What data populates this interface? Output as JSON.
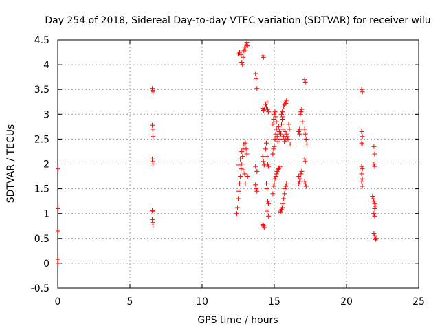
{
  "chart_data": {
    "type": "scatter",
    "title": "Day 254 of 2018, Sidereal Day-to-day VTEC variation (SDTVAR) for receiver wilu",
    "xlabel": "GPS time / hours",
    "ylabel": "SDTVAR / TECUs",
    "xlim": [
      0,
      25
    ],
    "ylim": [
      -0.5,
      4.5
    ],
    "xticks": [
      0,
      5,
      10,
      15,
      20,
      25
    ],
    "xtick_labels": [
      "0",
      "5",
      "10",
      "15",
      "20",
      "25"
    ],
    "yticks": [
      -0.5,
      0,
      0.5,
      1,
      1.5,
      2,
      2.5,
      3,
      3.5,
      4,
      4.5
    ],
    "ytick_labels": [
      "-0.5",
      "0",
      "0.5",
      "1",
      "1.5",
      "2",
      "2.5",
      "3",
      "3.5",
      "4",
      "4.5"
    ],
    "grid": true,
    "marker": "+",
    "color": "#ff0000",
    "series": [
      {
        "name": "SDTVAR",
        "points": [
          [
            0.02,
            1.9
          ],
          [
            0.02,
            1.1
          ],
          [
            0.02,
            0.65
          ],
          [
            0.02,
            0.08
          ],
          [
            0.02,
            0.0
          ],
          [
            6.55,
            3.52
          ],
          [
            6.58,
            3.48
          ],
          [
            6.6,
            3.45
          ],
          [
            6.55,
            2.78
          ],
          [
            6.58,
            2.7
          ],
          [
            6.6,
            2.55
          ],
          [
            6.55,
            2.1
          ],
          [
            6.58,
            2.05
          ],
          [
            6.6,
            2.0
          ],
          [
            6.55,
            1.06
          ],
          [
            6.58,
            1.04
          ],
          [
            6.55,
            0.88
          ],
          [
            6.58,
            0.82
          ],
          [
            6.6,
            0.77
          ],
          [
            12.4,
            1.0
          ],
          [
            12.45,
            1.12
          ],
          [
            12.5,
            1.3
          ],
          [
            12.55,
            1.45
          ],
          [
            12.6,
            1.6
          ],
          [
            12.65,
            1.75
          ],
          [
            12.7,
            1.9
          ],
          [
            12.75,
            2.0
          ],
          [
            12.8,
            2.15
          ],
          [
            12.85,
            2.3
          ],
          [
            12.9,
            2.4
          ],
          [
            13.0,
            2.42
          ],
          [
            12.55,
            1.98
          ],
          [
            12.65,
            2.1
          ],
          [
            12.75,
            2.25
          ],
          [
            12.85,
            1.88
          ],
          [
            12.95,
            1.8
          ],
          [
            12.5,
            4.22
          ],
          [
            12.6,
            4.25
          ],
          [
            12.7,
            4.2
          ],
          [
            12.75,
            4.05
          ],
          [
            12.8,
            4.0
          ],
          [
            12.85,
            4.15
          ],
          [
            12.9,
            4.28
          ],
          [
            12.95,
            4.35
          ],
          [
            13.0,
            4.3
          ],
          [
            13.05,
            4.4
          ],
          [
            13.1,
            4.45
          ],
          [
            13.15,
            4.38
          ],
          [
            13.05,
            2.3
          ],
          [
            13.1,
            2.2
          ],
          [
            13.15,
            1.75
          ],
          [
            13.0,
            1.6
          ],
          [
            13.7,
            3.82
          ],
          [
            13.75,
            3.72
          ],
          [
            13.8,
            3.52
          ],
          [
            13.7,
            1.95
          ],
          [
            13.8,
            1.85
          ],
          [
            13.7,
            1.58
          ],
          [
            13.75,
            1.5
          ],
          [
            13.8,
            1.45
          ],
          [
            14.2,
            4.18
          ],
          [
            14.25,
            4.15
          ],
          [
            14.2,
            3.12
          ],
          [
            14.25,
            3.08
          ],
          [
            14.3,
            3.1
          ],
          [
            14.2,
            2.15
          ],
          [
            14.25,
            2.05
          ],
          [
            14.3,
            1.98
          ],
          [
            14.2,
            0.78
          ],
          [
            14.25,
            0.75
          ],
          [
            14.3,
            0.72
          ],
          [
            14.4,
            3.2
          ],
          [
            14.45,
            3.15
          ],
          [
            14.5,
            3.25
          ],
          [
            14.55,
            3.1
          ],
          [
            14.6,
            3.05
          ],
          [
            14.4,
            2.3
          ],
          [
            14.45,
            2.42
          ],
          [
            14.5,
            2.15
          ],
          [
            14.55,
            2.0
          ],
          [
            14.6,
            1.95
          ],
          [
            14.45,
            1.6
          ],
          [
            14.5,
            1.5
          ],
          [
            14.55,
            1.25
          ],
          [
            14.6,
            1.2
          ],
          [
            14.5,
            1.05
          ],
          [
            14.6,
            0.95
          ],
          [
            14.9,
            1.4
          ],
          [
            14.95,
            1.55
          ],
          [
            15.0,
            1.6
          ],
          [
            15.05,
            1.7
          ],
          [
            15.1,
            1.75
          ],
          [
            15.15,
            1.8
          ],
          [
            15.2,
            1.85
          ],
          [
            15.25,
            1.88
          ],
          [
            15.3,
            1.9
          ],
          [
            15.35,
            1.92
          ],
          [
            15.4,
            1.95
          ],
          [
            14.9,
            2.2
          ],
          [
            14.95,
            2.3
          ],
          [
            15.0,
            2.35
          ],
          [
            15.05,
            2.5
          ],
          [
            15.1,
            2.6
          ],
          [
            15.15,
            2.7
          ],
          [
            14.9,
            2.8
          ],
          [
            14.95,
            2.9
          ],
          [
            15.0,
            3.0
          ],
          [
            15.05,
            3.05
          ],
          [
            15.1,
            2.95
          ],
          [
            15.15,
            2.85
          ],
          [
            15.2,
            2.55
          ],
          [
            15.25,
            2.45
          ],
          [
            15.3,
            2.75
          ],
          [
            15.35,
            2.65
          ],
          [
            15.4,
            2.5
          ],
          [
            15.45,
            2.6
          ],
          [
            15.5,
            2.8
          ],
          [
            15.55,
            2.9
          ],
          [
            15.6,
            2.7
          ],
          [
            15.65,
            2.55
          ],
          [
            15.7,
            2.45
          ],
          [
            15.75,
            2.65
          ],
          [
            15.8,
            2.5
          ],
          [
            15.85,
            2.6
          ],
          [
            15.9,
            2.55
          ],
          [
            15.95,
            2.5
          ],
          [
            15.4,
            1.02
          ],
          [
            15.45,
            1.05
          ],
          [
            15.5,
            1.08
          ],
          [
            15.55,
            1.12
          ],
          [
            15.6,
            1.2
          ],
          [
            15.65,
            1.3
          ],
          [
            15.7,
            1.4
          ],
          [
            15.75,
            1.5
          ],
          [
            15.8,
            1.55
          ],
          [
            15.85,
            1.6
          ],
          [
            15.5,
            3.0
          ],
          [
            15.55,
            3.05
          ],
          [
            15.6,
            2.95
          ],
          [
            15.65,
            3.15
          ],
          [
            15.7,
            3.2
          ],
          [
            15.75,
            3.25
          ],
          [
            15.8,
            3.22
          ],
          [
            15.85,
            3.28
          ],
          [
            16.0,
            2.8
          ],
          [
            16.05,
            2.7
          ],
          [
            16.1,
            2.4
          ],
          [
            16.7,
            1.6
          ],
          [
            16.75,
            1.65
          ],
          [
            16.8,
            1.7
          ],
          [
            16.85,
            1.8
          ],
          [
            16.9,
            1.85
          ],
          [
            16.7,
            1.75
          ],
          [
            16.7,
            2.65
          ],
          [
            16.75,
            2.7
          ],
          [
            16.8,
            3.0
          ],
          [
            16.85,
            3.05
          ],
          [
            16.9,
            3.1
          ],
          [
            16.95,
            2.85
          ],
          [
            16.75,
            2.6
          ],
          [
            17.1,
            3.7
          ],
          [
            17.15,
            3.65
          ],
          [
            17.1,
            2.7
          ],
          [
            17.15,
            2.6
          ],
          [
            17.2,
            2.5
          ],
          [
            17.25,
            2.4
          ],
          [
            17.1,
            2.1
          ],
          [
            17.15,
            2.05
          ],
          [
            17.1,
            1.65
          ],
          [
            17.15,
            1.6
          ],
          [
            17.2,
            1.55
          ],
          [
            21.05,
            3.5
          ],
          [
            21.1,
            3.45
          ],
          [
            21.05,
            2.65
          ],
          [
            21.1,
            2.55
          ],
          [
            21.05,
            2.42
          ],
          [
            21.1,
            2.4
          ],
          [
            21.05,
            1.95
          ],
          [
            21.1,
            1.9
          ],
          [
            21.05,
            1.8
          ],
          [
            21.1,
            1.7
          ],
          [
            21.05,
            1.65
          ],
          [
            21.1,
            1.55
          ],
          [
            21.9,
            2.35
          ],
          [
            21.95,
            2.2
          ],
          [
            21.9,
            2.0
          ],
          [
            21.95,
            1.95
          ],
          [
            21.8,
            1.35
          ],
          [
            21.85,
            1.3
          ],
          [
            21.9,
            1.25
          ],
          [
            21.95,
            1.2
          ],
          [
            22.0,
            1.15
          ],
          [
            21.95,
            1.1
          ],
          [
            21.9,
            1.0
          ],
          [
            21.95,
            0.95
          ],
          [
            21.9,
            0.6
          ],
          [
            21.95,
            0.55
          ],
          [
            22.0,
            0.48
          ],
          [
            22.05,
            0.5
          ]
        ]
      }
    ]
  }
}
